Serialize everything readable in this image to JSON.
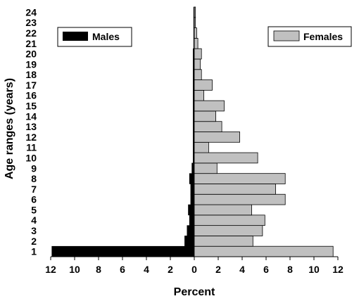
{
  "chart_data": {
    "type": "bar",
    "orientation": "horizontal-population-pyramid",
    "categories": [
      "1",
      "2",
      "3",
      "4",
      "5",
      "6",
      "7",
      "8",
      "9",
      "10",
      "11",
      "12",
      "13",
      "14",
      "15",
      "16",
      "17",
      "18",
      "19",
      "20",
      "21",
      "22",
      "23",
      "24"
    ],
    "series": [
      {
        "name": "Males",
        "color": "#000000",
        "side": "left",
        "values": [
          11.9,
          0.8,
          0.6,
          0.4,
          0.5,
          0.3,
          0.3,
          0.4,
          0.2,
          0.1,
          0.1,
          0.1,
          0.1,
          0.1,
          0.1,
          0.1,
          0.1,
          0.1,
          0.1,
          0.1,
          0.05,
          0.05,
          0.05,
          0.05
        ]
      },
      {
        "name": "Females",
        "color": "#c0c0c0",
        "side": "right",
        "values": [
          11.6,
          4.9,
          5.7,
          5.9,
          4.8,
          7.6,
          6.8,
          7.6,
          1.9,
          5.3,
          1.2,
          3.8,
          2.3,
          1.8,
          2.5,
          0.8,
          1.5,
          0.6,
          0.5,
          0.6,
          0.3,
          0.2,
          0.1,
          0.1
        ]
      }
    ],
    "xlabel": "Percent",
    "ylabel": "Age ranges (years)",
    "xlim": [
      -12,
      12
    ],
    "xticks": [
      -12,
      -10,
      -8,
      -6,
      -4,
      -2,
      0,
      2,
      4,
      6,
      8,
      10,
      12
    ],
    "xtick_labels": [
      "12",
      "10",
      "8",
      "6",
      "4",
      "2",
      "0",
      "2",
      "4",
      "6",
      "8",
      "10",
      "12"
    ],
    "grid": false,
    "legend": [
      {
        "label": "Males",
        "placement": "top-left"
      },
      {
        "label": "Females",
        "placement": "top-right"
      }
    ]
  }
}
